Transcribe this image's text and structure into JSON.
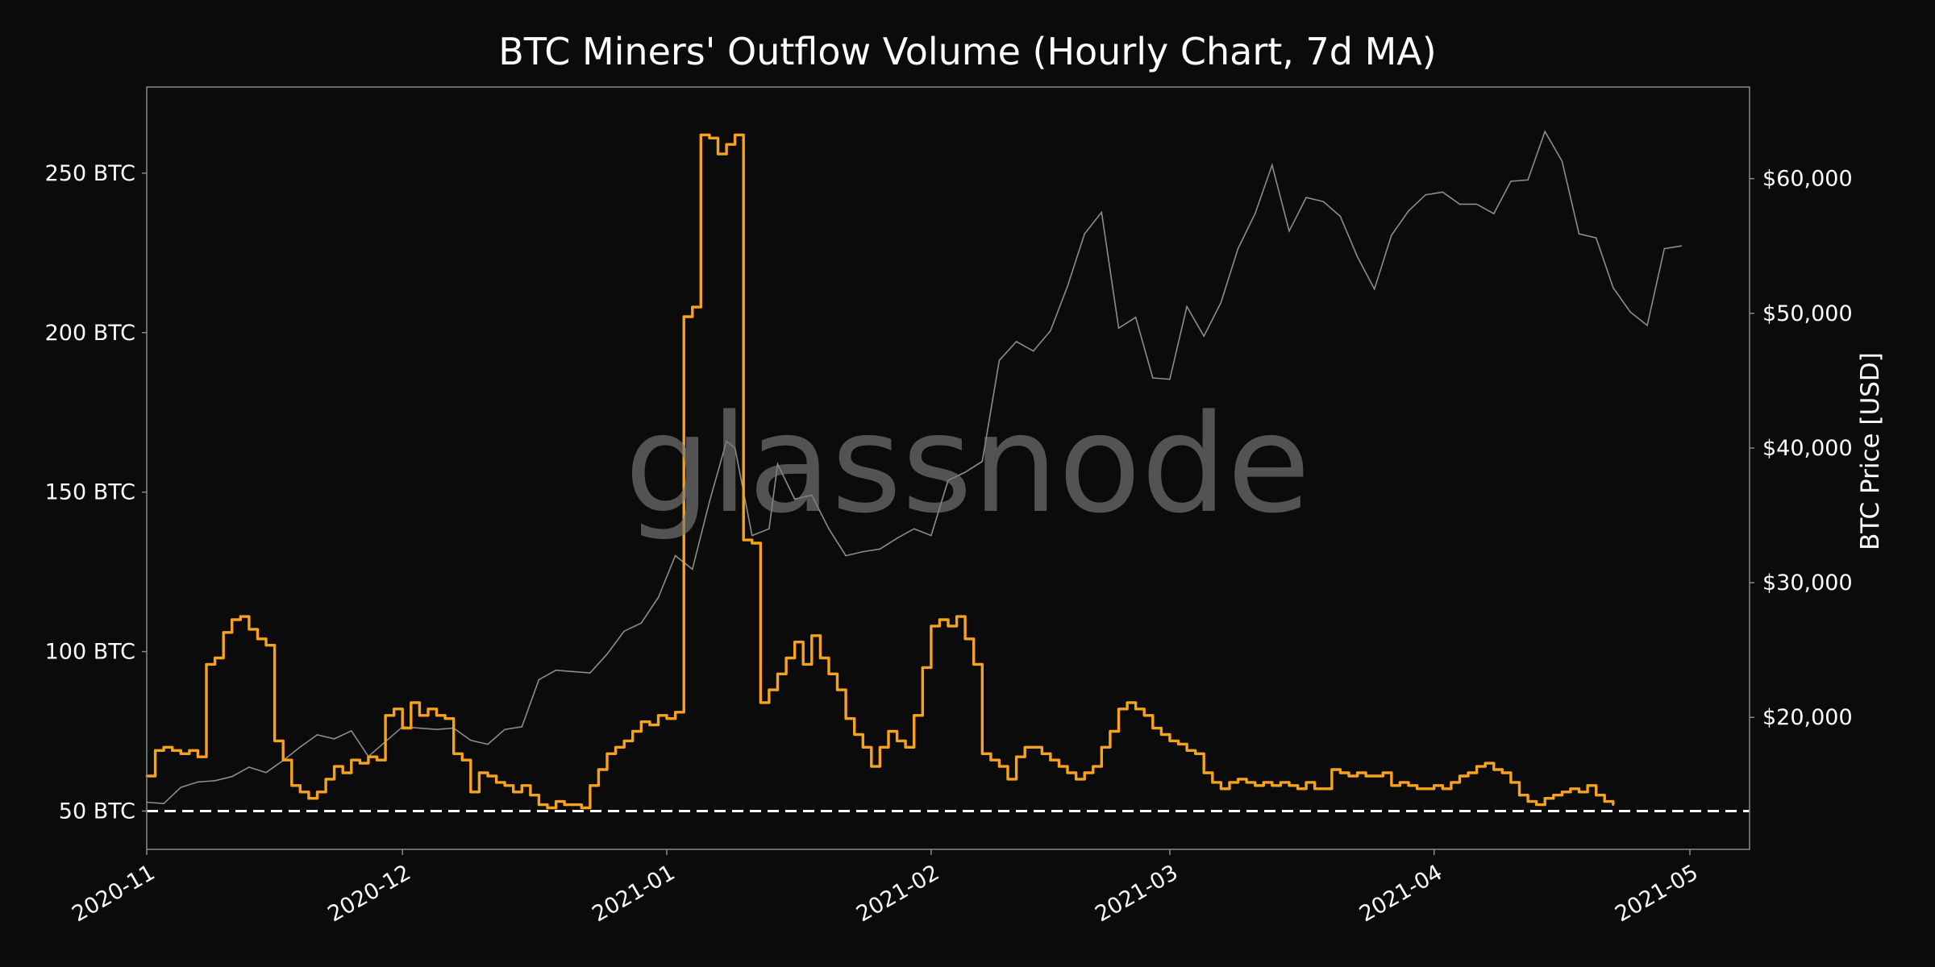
{
  "colors": {
    "background": "#0b0b0b",
    "plot_border": "#8a8a8a",
    "outflow_line": "#f7a21b",
    "price_line": "#8c8c8c",
    "baseline": "#ffffff",
    "text": "#ffffff",
    "watermark": "#7a7a7a"
  },
  "chart_data": {
    "type": "line",
    "title": "BTC Miners' Outflow Volume (Hourly Chart, 7d MA)",
    "watermark": "glassnode",
    "xlabel": "",
    "ylabel_left": "",
    "ylabel_right": "BTC Price [USD]",
    "x_ticks": [
      "2020-11",
      "2020-12",
      "2021-01",
      "2021-02",
      "2021-03",
      "2021-04",
      "2021-05"
    ],
    "xlim": [
      "2020-11-01",
      "2021-05-08"
    ],
    "y_left_ticks": [
      "50 BTC",
      "100 BTC",
      "150 BTC",
      "200 BTC",
      "250 BTC"
    ],
    "y_left_tick_values": [
      50,
      100,
      150,
      200,
      250
    ],
    "ylim_left": [
      38,
      277
    ],
    "y_right_ticks": [
      "$20,000",
      "$30,000",
      "$40,000",
      "$50,000",
      "$60,000"
    ],
    "y_right_tick_values": [
      20000,
      30000,
      40000,
      50000,
      60000
    ],
    "ylim_right": [
      10200,
      66800
    ],
    "legend": "none",
    "grid": false,
    "series": [
      {
        "axis": "left",
        "unit": "BTC",
        "points": [
          [
            "2020-11-01",
            61
          ],
          [
            "2020-11-02",
            69
          ],
          [
            "2020-11-03",
            70
          ],
          [
            "2020-11-04",
            69
          ],
          [
            "2020-11-05",
            68
          ],
          [
            "2020-11-06",
            69
          ],
          [
            "2020-11-07",
            67
          ],
          [
            "2020-11-08",
            96
          ],
          [
            "2020-11-09",
            98
          ],
          [
            "2020-11-10",
            106
          ],
          [
            "2020-11-11",
            110
          ],
          [
            "2020-11-12",
            111
          ],
          [
            "2020-11-13",
            107
          ],
          [
            "2020-11-14",
            104
          ],
          [
            "2020-11-15",
            102
          ],
          [
            "2020-11-16",
            72
          ],
          [
            "2020-11-17",
            66
          ],
          [
            "2020-11-18",
            58
          ],
          [
            "2020-11-19",
            56
          ],
          [
            "2020-11-20",
            54
          ],
          [
            "2020-11-21",
            56
          ],
          [
            "2020-11-22",
            60
          ],
          [
            "2020-11-23",
            64
          ],
          [
            "2020-11-24",
            62
          ],
          [
            "2020-11-25",
            66
          ],
          [
            "2020-11-26",
            65
          ],
          [
            "2020-11-27",
            67
          ],
          [
            "2020-11-28",
            66
          ],
          [
            "2020-11-29",
            80
          ],
          [
            "2020-11-30",
            82
          ],
          [
            "2020-12-01",
            76
          ],
          [
            "2020-12-02",
            84
          ],
          [
            "2020-12-03",
            80
          ],
          [
            "2020-12-04",
            82
          ],
          [
            "2020-12-05",
            80
          ],
          [
            "2020-12-06",
            79
          ],
          [
            "2020-12-07",
            68
          ],
          [
            "2020-12-08",
            66
          ],
          [
            "2020-12-09",
            56
          ],
          [
            "2020-12-10",
            62
          ],
          [
            "2020-12-11",
            61
          ],
          [
            "2020-12-12",
            59
          ],
          [
            "2020-12-13",
            58
          ],
          [
            "2020-12-14",
            56
          ],
          [
            "2020-12-15",
            58
          ],
          [
            "2020-12-16",
            55
          ],
          [
            "2020-12-17",
            52
          ],
          [
            "2020-12-18",
            51
          ],
          [
            "2020-12-19",
            53
          ],
          [
            "2020-12-20",
            52
          ],
          [
            "2020-12-21",
            52
          ],
          [
            "2020-12-22",
            51
          ],
          [
            "2020-12-23",
            58
          ],
          [
            "2020-12-24",
            63
          ],
          [
            "2020-12-25",
            68
          ],
          [
            "2020-12-26",
            70
          ],
          [
            "2020-12-27",
            72
          ],
          [
            "2020-12-28",
            75
          ],
          [
            "2020-12-29",
            78
          ],
          [
            "2020-12-30",
            77
          ],
          [
            "2020-12-31",
            80
          ],
          [
            "2021-01-01",
            79
          ],
          [
            "2021-01-02",
            81
          ],
          [
            "2021-01-03",
            205
          ],
          [
            "2021-01-04",
            208
          ],
          [
            "2021-01-05",
            262
          ],
          [
            "2021-01-06",
            261
          ],
          [
            "2021-01-07",
            256
          ],
          [
            "2021-01-08",
            259
          ],
          [
            "2021-01-09",
            262
          ],
          [
            "2021-01-10",
            135
          ],
          [
            "2021-01-11",
            134
          ],
          [
            "2021-01-12",
            84
          ],
          [
            "2021-01-13",
            88
          ],
          [
            "2021-01-14",
            93
          ],
          [
            "2021-01-15",
            98
          ],
          [
            "2021-01-16",
            103
          ],
          [
            "2021-01-17",
            96
          ],
          [
            "2021-01-18",
            105
          ],
          [
            "2021-01-19",
            98
          ],
          [
            "2021-01-20",
            93
          ],
          [
            "2021-01-21",
            88
          ],
          [
            "2021-01-22",
            79
          ],
          [
            "2021-01-23",
            74
          ],
          [
            "2021-01-24",
            70
          ],
          [
            "2021-01-25",
            64
          ],
          [
            "2021-01-26",
            70
          ],
          [
            "2021-01-27",
            75
          ],
          [
            "2021-01-28",
            72
          ],
          [
            "2021-01-29",
            70
          ],
          [
            "2021-01-30",
            80
          ],
          [
            "2021-01-31",
            95
          ],
          [
            "2021-02-01",
            108
          ],
          [
            "2021-02-02",
            110
          ],
          [
            "2021-02-03",
            108
          ],
          [
            "2021-02-04",
            111
          ],
          [
            "2021-02-05",
            104
          ],
          [
            "2021-02-06",
            96
          ],
          [
            "2021-02-07",
            68
          ],
          [
            "2021-02-08",
            66
          ],
          [
            "2021-02-09",
            64
          ],
          [
            "2021-02-10",
            60
          ],
          [
            "2021-02-11",
            67
          ],
          [
            "2021-02-12",
            70
          ],
          [
            "2021-02-13",
            70
          ],
          [
            "2021-02-14",
            68
          ],
          [
            "2021-02-15",
            66
          ],
          [
            "2021-02-16",
            64
          ],
          [
            "2021-02-17",
            62
          ],
          [
            "2021-02-18",
            60
          ],
          [
            "2021-02-19",
            62
          ],
          [
            "2021-02-20",
            64
          ],
          [
            "2021-02-21",
            70
          ],
          [
            "2021-02-22",
            75
          ],
          [
            "2021-02-23",
            82
          ],
          [
            "2021-02-24",
            84
          ],
          [
            "2021-02-25",
            82
          ],
          [
            "2021-02-26",
            80
          ],
          [
            "2021-02-27",
            76
          ],
          [
            "2021-02-28",
            74
          ],
          [
            "2021-03-01",
            72
          ],
          [
            "2021-03-02",
            71
          ],
          [
            "2021-03-03",
            69
          ],
          [
            "2021-03-04",
            68
          ],
          [
            "2021-03-05",
            62
          ],
          [
            "2021-03-06",
            59
          ],
          [
            "2021-03-07",
            57
          ],
          [
            "2021-03-08",
            59
          ],
          [
            "2021-03-09",
            60
          ],
          [
            "2021-03-10",
            59
          ],
          [
            "2021-03-11",
            58
          ],
          [
            "2021-03-12",
            59
          ],
          [
            "2021-03-13",
            58
          ],
          [
            "2021-03-14",
            59
          ],
          [
            "2021-03-15",
            58
          ],
          [
            "2021-03-16",
            57
          ],
          [
            "2021-03-17",
            59
          ],
          [
            "2021-03-18",
            57
          ],
          [
            "2021-03-19",
            57
          ],
          [
            "2021-03-20",
            63
          ],
          [
            "2021-03-21",
            62
          ],
          [
            "2021-03-22",
            61
          ],
          [
            "2021-03-23",
            62
          ],
          [
            "2021-03-24",
            61
          ],
          [
            "2021-03-25",
            61
          ],
          [
            "2021-03-26",
            62
          ],
          [
            "2021-03-27",
            58
          ],
          [
            "2021-03-28",
            59
          ],
          [
            "2021-03-29",
            58
          ],
          [
            "2021-03-30",
            57
          ],
          [
            "2021-03-31",
            57
          ],
          [
            "2021-04-01",
            58
          ],
          [
            "2021-04-02",
            57
          ],
          [
            "2021-04-03",
            59
          ],
          [
            "2021-04-04",
            61
          ],
          [
            "2021-04-05",
            62
          ],
          [
            "2021-04-06",
            64
          ],
          [
            "2021-04-07",
            65
          ],
          [
            "2021-04-08",
            63
          ],
          [
            "2021-04-09",
            62
          ],
          [
            "2021-04-10",
            59
          ],
          [
            "2021-04-11",
            55
          ],
          [
            "2021-04-12",
            53
          ],
          [
            "2021-04-13",
            52
          ],
          [
            "2021-04-14",
            54
          ],
          [
            "2021-04-15",
            55
          ],
          [
            "2021-04-16",
            56
          ],
          [
            "2021-04-17",
            57
          ],
          [
            "2021-04-18",
            56
          ],
          [
            "2021-04-19",
            58
          ],
          [
            "2021-04-20",
            55
          ],
          [
            "2021-04-21",
            53
          ],
          [
            "2021-04-22",
            52
          ]
        ]
      },
      {
        "axis": "right",
        "unit": "USD",
        "points": [
          [
            "2020-11-01",
            13700
          ],
          [
            "2020-11-03",
            13600
          ],
          [
            "2020-11-05",
            14800
          ],
          [
            "2020-11-07",
            15200
          ],
          [
            "2020-11-09",
            15300
          ],
          [
            "2020-11-11",
            15600
          ],
          [
            "2020-11-13",
            16300
          ],
          [
            "2020-11-15",
            15900
          ],
          [
            "2020-11-17",
            16800
          ],
          [
            "2020-11-19",
            17800
          ],
          [
            "2020-11-21",
            18700
          ],
          [
            "2020-11-23",
            18400
          ],
          [
            "2020-11-25",
            19000
          ],
          [
            "2020-11-27",
            17100
          ],
          [
            "2020-11-29",
            18200
          ],
          [
            "2020-12-01",
            19300
          ],
          [
            "2020-12-03",
            19200
          ],
          [
            "2020-12-05",
            19100
          ],
          [
            "2020-12-07",
            19200
          ],
          [
            "2020-12-09",
            18300
          ],
          [
            "2020-12-11",
            18000
          ],
          [
            "2020-12-13",
            19100
          ],
          [
            "2020-12-15",
            19300
          ],
          [
            "2020-12-17",
            22800
          ],
          [
            "2020-12-19",
            23500
          ],
          [
            "2020-12-21",
            23400
          ],
          [
            "2020-12-23",
            23300
          ],
          [
            "2020-12-25",
            24700
          ],
          [
            "2020-12-27",
            26400
          ],
          [
            "2020-12-29",
            27000
          ],
          [
            "2020-12-31",
            28900
          ],
          [
            "2021-01-02",
            32000
          ],
          [
            "2021-01-04",
            31000
          ],
          [
            "2021-01-06",
            36000
          ],
          [
            "2021-01-08",
            40500
          ],
          [
            "2021-01-09",
            40000
          ],
          [
            "2021-01-11",
            33500
          ],
          [
            "2021-01-13",
            34000
          ],
          [
            "2021-01-14",
            38800
          ],
          [
            "2021-01-16",
            36200
          ],
          [
            "2021-01-18",
            36500
          ],
          [
            "2021-01-20",
            34000
          ],
          [
            "2021-01-22",
            32000
          ],
          [
            "2021-01-24",
            32300
          ],
          [
            "2021-01-26",
            32500
          ],
          [
            "2021-01-28",
            33300
          ],
          [
            "2021-01-30",
            34000
          ],
          [
            "2021-02-01",
            33500
          ],
          [
            "2021-02-03",
            37600
          ],
          [
            "2021-02-05",
            38200
          ],
          [
            "2021-02-07",
            39000
          ],
          [
            "2021-02-09",
            46500
          ],
          [
            "2021-02-11",
            47900
          ],
          [
            "2021-02-13",
            47200
          ],
          [
            "2021-02-15",
            48700
          ],
          [
            "2021-02-17",
            52000
          ],
          [
            "2021-02-19",
            55900
          ],
          [
            "2021-02-21",
            57500
          ],
          [
            "2021-02-23",
            48900
          ],
          [
            "2021-02-25",
            49700
          ],
          [
            "2021-02-27",
            45200
          ],
          [
            "2021-03-01",
            45100
          ],
          [
            "2021-03-03",
            50500
          ],
          [
            "2021-03-05",
            48300
          ],
          [
            "2021-03-07",
            50800
          ],
          [
            "2021-03-09",
            54800
          ],
          [
            "2021-03-11",
            57400
          ],
          [
            "2021-03-13",
            61000
          ],
          [
            "2021-03-15",
            56100
          ],
          [
            "2021-03-17",
            58600
          ],
          [
            "2021-03-19",
            58300
          ],
          [
            "2021-03-21",
            57200
          ],
          [
            "2021-03-23",
            54200
          ],
          [
            "2021-03-25",
            51800
          ],
          [
            "2021-03-27",
            55800
          ],
          [
            "2021-03-29",
            57600
          ],
          [
            "2021-03-31",
            58800
          ],
          [
            "2021-04-02",
            59000
          ],
          [
            "2021-04-04",
            58100
          ],
          [
            "2021-04-06",
            58100
          ],
          [
            "2021-04-08",
            57400
          ],
          [
            "2021-04-10",
            59800
          ],
          [
            "2021-04-12",
            59900
          ],
          [
            "2021-04-14",
            63500
          ],
          [
            "2021-04-16",
            61300
          ],
          [
            "2021-04-18",
            55900
          ],
          [
            "2021-04-20",
            55600
          ],
          [
            "2021-04-22",
            51900
          ],
          [
            "2021-04-24",
            50100
          ],
          [
            "2021-04-26",
            49100
          ],
          [
            "2021-04-28",
            54800
          ],
          [
            "2021-04-30",
            55000
          ]
        ]
      }
    ],
    "reference_line": {
      "axis": "left",
      "value": 50,
      "style": "dashed"
    }
  }
}
